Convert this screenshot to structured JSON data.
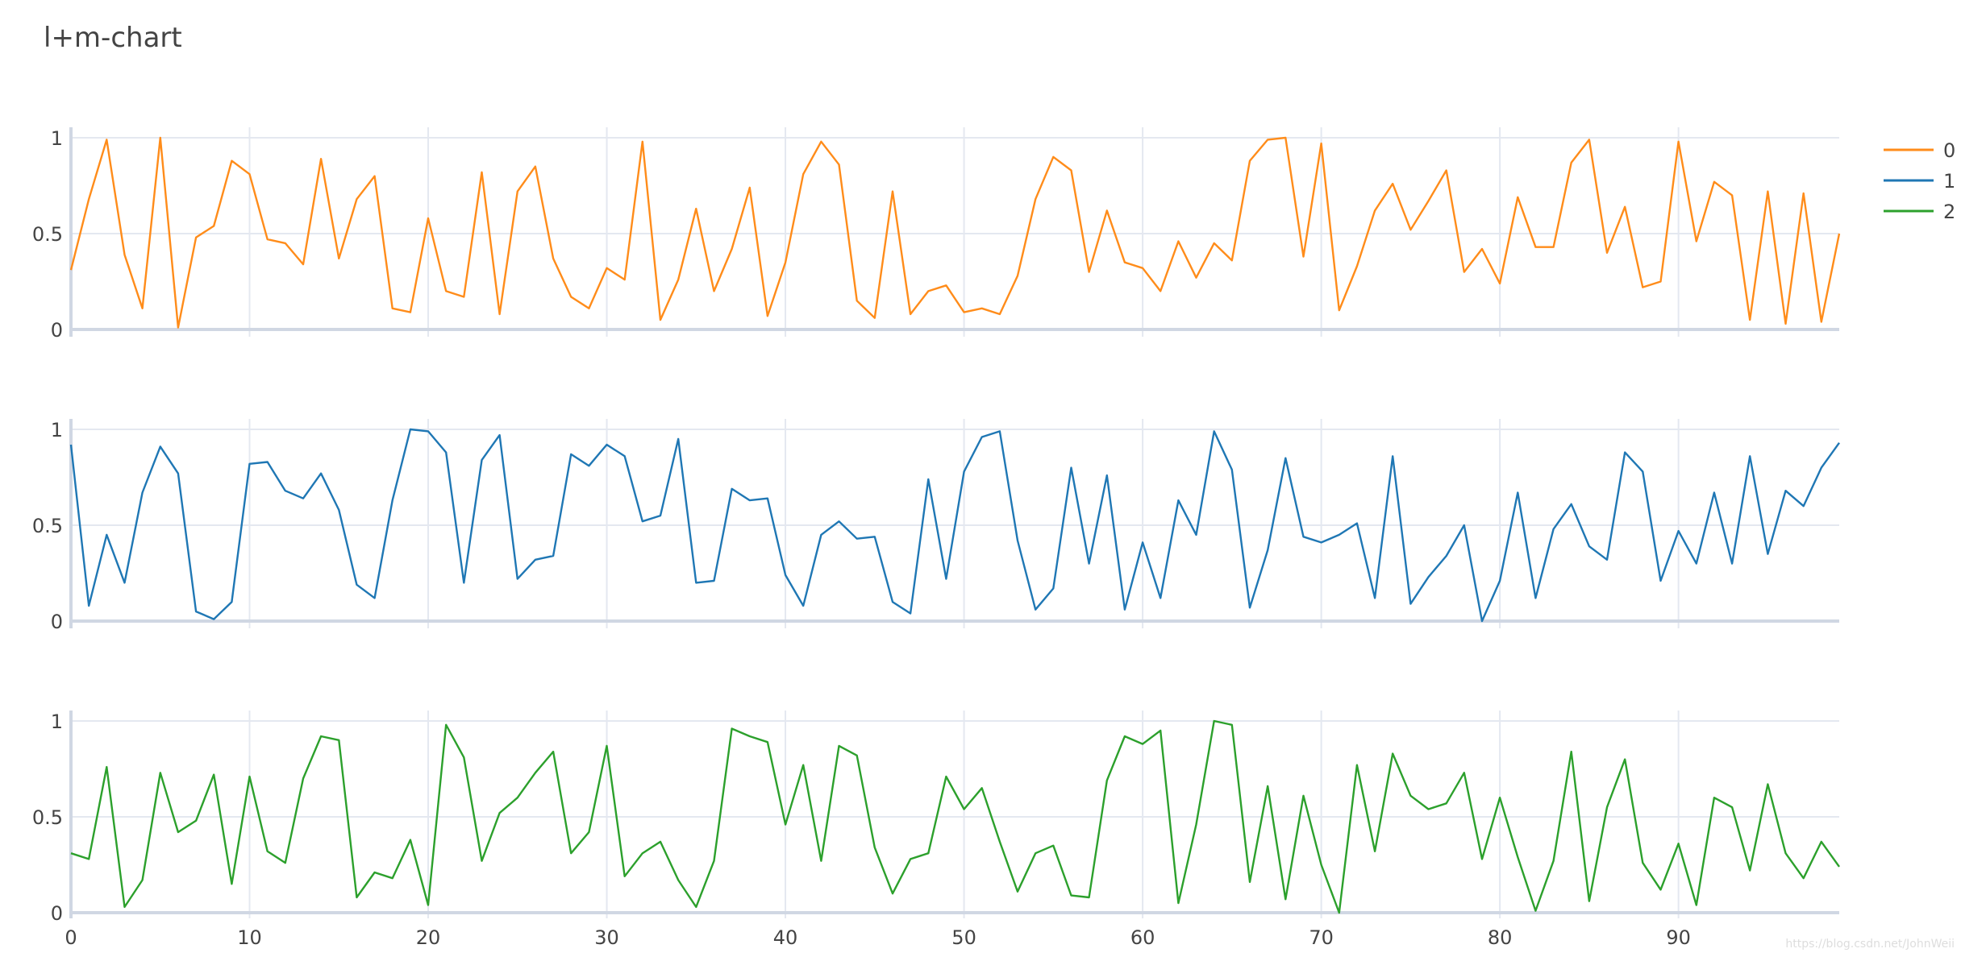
{
  "title": "l+m-chart",
  "watermark": "https://blog.csdn.net/JohnWeii",
  "chart_data": [
    {
      "type": "line",
      "title": "l+m-chart",
      "xlabel": "",
      "ylabel": "",
      "xlim": [
        0,
        99
      ],
      "ylim": [
        0,
        1
      ],
      "x_ticks": [
        0,
        10,
        20,
        30,
        40,
        50,
        60,
        70,
        80,
        90
      ],
      "y_ticks": [
        0,
        0.5,
        1
      ],
      "y_tick_labels": [
        "0",
        "0.5",
        "1"
      ],
      "grid": true,
      "legend": "top-right",
      "shared_x_axis": "bottom",
      "series": [
        {
          "name": "0",
          "color": "#ff8c1a",
          "x": [
            0,
            1,
            2,
            3,
            4,
            5,
            6,
            7,
            8,
            9,
            10,
            11,
            12,
            13,
            14,
            15,
            16,
            17,
            18,
            19,
            20,
            21,
            22,
            23,
            24,
            25,
            26,
            27,
            28,
            29,
            30,
            31,
            32,
            33,
            34,
            35,
            36,
            37,
            38,
            39,
            40,
            41,
            42,
            43,
            44,
            45,
            46,
            47,
            48,
            49,
            50,
            51,
            52,
            53,
            54,
            55,
            56,
            57,
            58,
            59,
            60,
            61,
            62,
            63,
            64,
            65,
            66,
            67,
            68,
            69,
            70,
            71,
            72,
            73,
            74,
            75,
            76,
            77,
            78,
            79,
            80,
            81,
            82,
            83,
            84,
            85,
            86,
            87,
            88,
            89,
            90,
            91,
            92,
            93,
            94,
            95,
            96,
            97,
            98,
            99
          ],
          "values": [
            0.31,
            0.68,
            0.99,
            0.39,
            0.11,
            1.0,
            0.01,
            0.48,
            0.54,
            0.88,
            0.81,
            0.47,
            0.45,
            0.34,
            0.89,
            0.37,
            0.68,
            0.8,
            0.11,
            0.09,
            0.58,
            0.2,
            0.17,
            0.82,
            0.08,
            0.72,
            0.85,
            0.37,
            0.17,
            0.11,
            0.32,
            0.26,
            0.98,
            0.05,
            0.26,
            0.63,
            0.2,
            0.42,
            0.74,
            0.07,
            0.35,
            0.81,
            0.98,
            0.86,
            0.15,
            0.06,
            0.72,
            0.08,
            0.2,
            0.23,
            0.09,
            0.11,
            0.08,
            0.28,
            0.68,
            0.9,
            0.83,
            0.3,
            0.62,
            0.35,
            0.32,
            0.2,
            0.46,
            0.27,
            0.45,
            0.36,
            0.88,
            0.99,
            1.0,
            0.38,
            0.97,
            0.1,
            0.33,
            0.62,
            0.76,
            0.52,
            0.67,
            0.83,
            0.3,
            0.42,
            0.24,
            0.69,
            0.43,
            0.43,
            0.87,
            0.99,
            0.4,
            0.64,
            0.22,
            0.25,
            0.98,
            0.46,
            0.77,
            0.7,
            0.05,
            0.72,
            0.03,
            0.71,
            0.04,
            0.5
          ]
        },
        {
          "name": "1",
          "color": "#1f77b4",
          "x": [
            0,
            1,
            2,
            3,
            4,
            5,
            6,
            7,
            8,
            9,
            10,
            11,
            12,
            13,
            14,
            15,
            16,
            17,
            18,
            19,
            20,
            21,
            22,
            23,
            24,
            25,
            26,
            27,
            28,
            29,
            30,
            31,
            32,
            33,
            34,
            35,
            36,
            37,
            38,
            39,
            40,
            41,
            42,
            43,
            44,
            45,
            46,
            47,
            48,
            49,
            50,
            51,
            52,
            53,
            54,
            55,
            56,
            57,
            58,
            59,
            60,
            61,
            62,
            63,
            64,
            65,
            66,
            67,
            68,
            69,
            70,
            71,
            72,
            73,
            74,
            75,
            76,
            77,
            78,
            79,
            80,
            81,
            82,
            83,
            84,
            85,
            86,
            87,
            88,
            89,
            90,
            91,
            92,
            93,
            94,
            95,
            96,
            97,
            98,
            99
          ],
          "values": [
            0.92,
            0.08,
            0.45,
            0.2,
            0.67,
            0.91,
            0.77,
            0.05,
            0.01,
            0.1,
            0.82,
            0.83,
            0.68,
            0.64,
            0.77,
            0.58,
            0.19,
            0.12,
            0.63,
            1.0,
            0.99,
            0.88,
            0.2,
            0.84,
            0.97,
            0.22,
            0.32,
            0.34,
            0.87,
            0.81,
            0.92,
            0.86,
            0.52,
            0.55,
            0.95,
            0.2,
            0.21,
            0.69,
            0.63,
            0.64,
            0.24,
            0.08,
            0.45,
            0.52,
            0.43,
            0.44,
            0.1,
            0.04,
            0.74,
            0.22,
            0.78,
            0.96,
            0.99,
            0.42,
            0.06,
            0.17,
            0.8,
            0.3,
            0.76,
            0.06,
            0.41,
            0.12,
            0.63,
            0.45,
            0.99,
            0.79,
            0.07,
            0.37,
            0.85,
            0.44,
            0.41,
            0.45,
            0.51,
            0.12,
            0.86,
            0.09,
            0.23,
            0.34,
            0.5,
            0.0,
            0.21,
            0.67,
            0.12,
            0.48,
            0.61,
            0.39,
            0.32,
            0.88,
            0.78,
            0.21,
            0.47,
            0.3,
            0.67,
            0.3,
            0.86,
            0.35,
            0.68,
            0.6,
            0.8,
            0.93
          ]
        },
        {
          "name": "2",
          "color": "#2ca02c",
          "x": [
            0,
            1,
            2,
            3,
            4,
            5,
            6,
            7,
            8,
            9,
            10,
            11,
            12,
            13,
            14,
            15,
            16,
            17,
            18,
            19,
            20,
            21,
            22,
            23,
            24,
            25,
            26,
            27,
            28,
            29,
            30,
            31,
            32,
            33,
            34,
            35,
            36,
            37,
            38,
            39,
            40,
            41,
            42,
            43,
            44,
            45,
            46,
            47,
            48,
            49,
            50,
            51,
            52,
            53,
            54,
            55,
            56,
            57,
            58,
            59,
            60,
            61,
            62,
            63,
            64,
            65,
            66,
            67,
            68,
            69,
            70,
            71,
            72,
            73,
            74,
            75,
            76,
            77,
            78,
            79,
            80,
            81,
            82,
            83,
            84,
            85,
            86,
            87,
            88,
            89,
            90,
            91,
            92,
            93,
            94,
            95,
            96,
            97,
            98,
            99
          ],
          "values": [
            0.31,
            0.28,
            0.76,
            0.03,
            0.17,
            0.73,
            0.42,
            0.48,
            0.72,
            0.15,
            0.71,
            0.32,
            0.26,
            0.7,
            0.92,
            0.9,
            0.08,
            0.21,
            0.18,
            0.38,
            0.04,
            0.98,
            0.81,
            0.27,
            0.52,
            0.6,
            0.73,
            0.84,
            0.31,
            0.42,
            0.87,
            0.19,
            0.31,
            0.37,
            0.17,
            0.03,
            0.27,
            0.96,
            0.92,
            0.89,
            0.46,
            0.77,
            0.27,
            0.87,
            0.82,
            0.34,
            0.1,
            0.28,
            0.31,
            0.71,
            0.54,
            0.65,
            0.37,
            0.11,
            0.31,
            0.35,
            0.09,
            0.08,
            0.69,
            0.92,
            0.88,
            0.95,
            0.05,
            0.46,
            1.0,
            0.98,
            0.16,
            0.66,
            0.07,
            0.61,
            0.25,
            0.0,
            0.77,
            0.32,
            0.83,
            0.61,
            0.54,
            0.57,
            0.73,
            0.28,
            0.6,
            0.29,
            0.01,
            0.27,
            0.84,
            0.06,
            0.55,
            0.8,
            0.26,
            0.12,
            0.36,
            0.04,
            0.6,
            0.55,
            0.22,
            0.67,
            0.31,
            0.18,
            0.37,
            0.24
          ]
        }
      ]
    }
  ]
}
